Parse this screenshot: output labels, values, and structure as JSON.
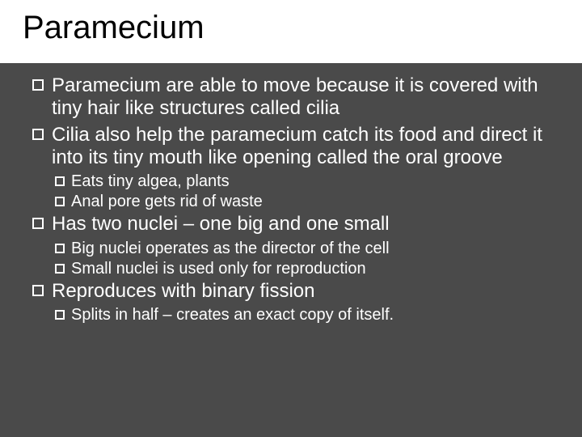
{
  "title": "Paramecium",
  "colors": {
    "title_bg": "#ffffff",
    "title_text": "#000000",
    "content_bg": "#4a4a4a",
    "content_text": "#ffffff",
    "marker_border": "#ffffff"
  },
  "typography": {
    "title_fontsize": 40,
    "l1_fontsize": 24,
    "l2_fontsize": 20,
    "font_family": "Arial"
  },
  "bullets": [
    {
      "level": 1,
      "text": "Paramecium are able to move because it is covered with tiny hair like structures called cilia"
    },
    {
      "level": 1,
      "text": "Cilia also help the paramecium catch its food and direct it into its tiny mouth like opening called the oral groove"
    },
    {
      "level": 2,
      "text": "Eats tiny algea, plants"
    },
    {
      "level": 2,
      "text": "Anal pore gets rid of waste"
    },
    {
      "level": 1,
      "text": "Has two nuclei – one big and one small"
    },
    {
      "level": 2,
      "text": "Big nuclei operates as the director of the cell"
    },
    {
      "level": 2,
      "text": "Small nuclei is used only for reproduction"
    },
    {
      "level": 1,
      "text": "Reproduces with binary fission"
    },
    {
      "level": 2,
      "text": "Splits in half – creates an exact copy of itself."
    }
  ]
}
